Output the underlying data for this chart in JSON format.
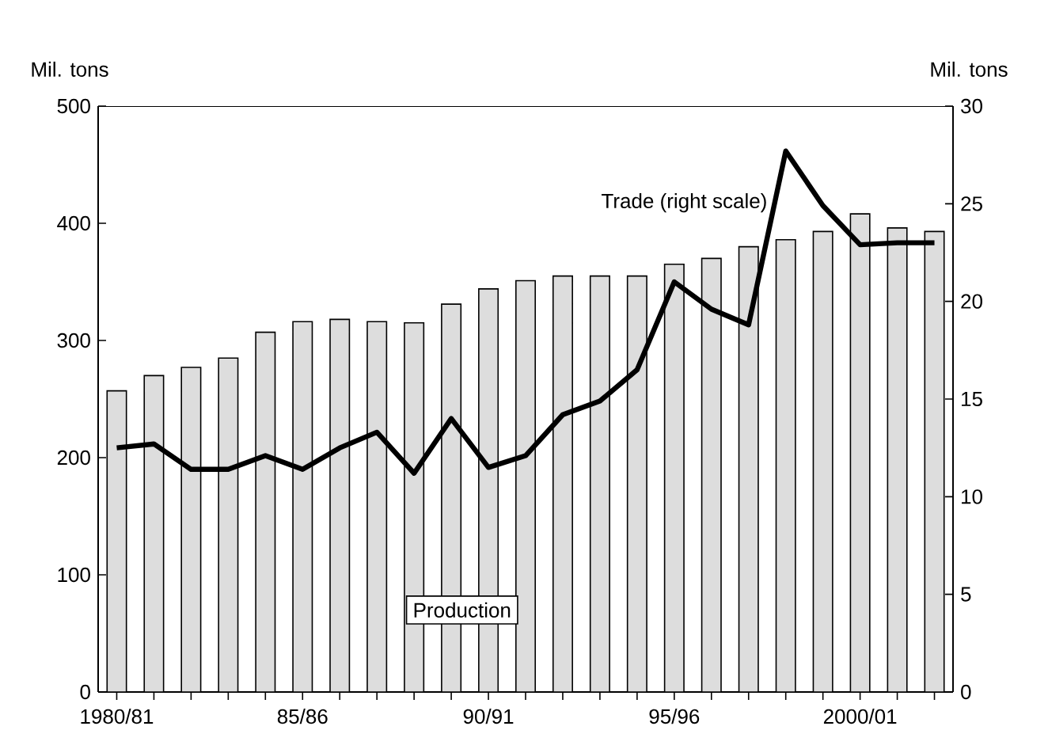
{
  "chart_data": {
    "type": "bar",
    "categories": [
      "1980/81",
      null,
      null,
      null,
      null,
      "85/86",
      null,
      null,
      null,
      null,
      "90/91",
      null,
      null,
      null,
      null,
      "95/96",
      null,
      null,
      null,
      null,
      "2000/01",
      null,
      null
    ],
    "series": [
      {
        "name": "Production",
        "color": "#dddddd",
        "values": [
          257,
          270,
          277,
          285,
          307,
          316,
          318,
          316,
          315,
          331,
          344,
          351,
          355,
          355,
          355,
          365,
          370,
          380,
          386,
          393,
          408,
          396,
          393
        ]
      },
      {
        "name": "Trade (right scale)",
        "type": "line",
        "axis": "y2",
        "color": "#000000",
        "values": [
          12.5,
          12.7,
          11.4,
          11.4,
          12.1,
          11.4,
          12.5,
          13.3,
          11.2,
          14.0,
          11.5,
          12.1,
          14.2,
          14.9,
          16.5,
          21.0,
          19.6,
          18.8,
          27.7,
          24.9,
          22.9,
          23.0,
          23.0
        ]
      }
    ],
    "ylabel": "Mil. tons",
    "y2label": "Mil. tons",
    "ylim": [
      0,
      500
    ],
    "yticks": [
      0,
      100,
      200,
      300,
      400,
      500
    ],
    "y2lim": [
      0,
      30
    ],
    "y2ticks": [
      0,
      5,
      10,
      15,
      20,
      25,
      30
    ]
  }
}
